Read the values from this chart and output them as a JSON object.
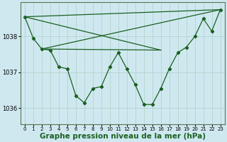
{
  "background_color": "#cfe8f0",
  "grid_color": "#b0d4cc",
  "line_color": "#1a6020",
  "xlabel": "Graphe pression niveau de la mer (hPa)",
  "xlabel_fontsize": 7.5,
  "xlim": [
    -0.5,
    23.5
  ],
  "ylim": [
    1035.55,
    1038.95
  ],
  "yticks": [
    1036,
    1037,
    1038
  ],
  "xticks": [
    0,
    1,
    2,
    3,
    4,
    5,
    6,
    7,
    8,
    9,
    10,
    11,
    12,
    13,
    14,
    15,
    16,
    17,
    18,
    19,
    20,
    21,
    22,
    23
  ],
  "main_x": [
    0,
    1,
    2,
    3,
    4,
    5,
    6,
    7,
    8,
    9,
    10,
    11,
    12,
    13,
    14,
    15,
    16,
    17,
    18,
    19,
    20,
    21,
    22,
    23
  ],
  "main_y": [
    1038.55,
    1037.95,
    1037.65,
    1037.62,
    1037.15,
    1037.1,
    1036.35,
    1036.15,
    1036.55,
    1036.6,
    1037.15,
    1037.55,
    1037.1,
    1036.65,
    1036.1,
    1036.1,
    1036.55,
    1037.1,
    1037.55,
    1037.7,
    1038.0,
    1038.5,
    1038.15,
    1038.75
  ],
  "trend_lines": [
    {
      "x": [
        0,
        23
      ],
      "y": [
        1038.55,
        1038.75
      ]
    },
    {
      "x": [
        0,
        16
      ],
      "y": [
        1038.55,
        1037.62
      ]
    },
    {
      "x": [
        2,
        23
      ],
      "y": [
        1037.65,
        1038.75
      ]
    },
    {
      "x": [
        2,
        16
      ],
      "y": [
        1037.65,
        1037.62
      ]
    }
  ]
}
